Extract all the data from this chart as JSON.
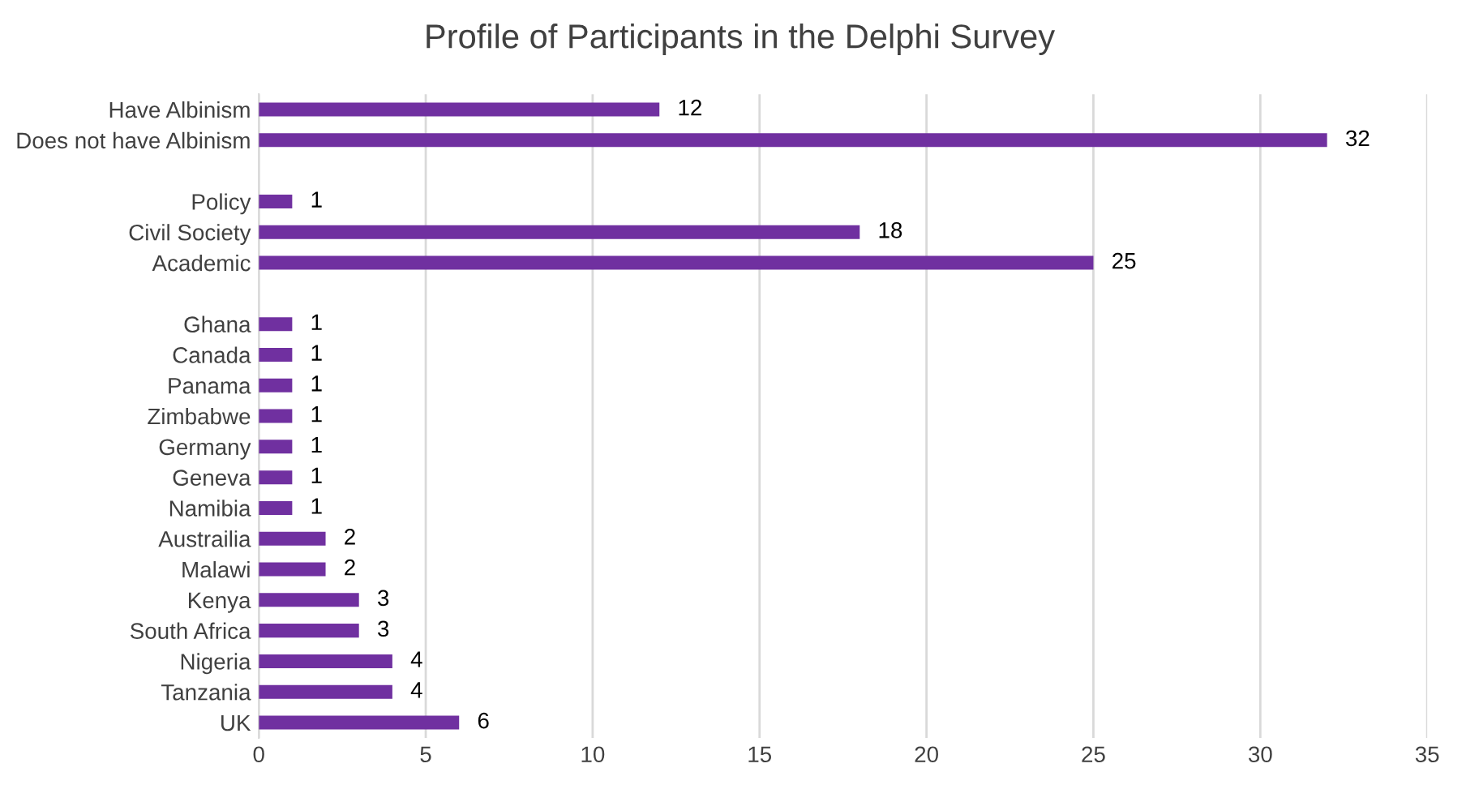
{
  "chart_data": {
    "type": "bar",
    "title": "Profile of Participants in the Delphi Survey",
    "orientation": "horizontal",
    "categories": [
      "Have Albinism",
      "Does not have Albinism",
      null,
      "Policy",
      "Civil Society",
      "Academic",
      null,
      "Ghana",
      "Canada",
      "Panama",
      "Zimbabwe",
      "Germany",
      "Geneva",
      "Namibia",
      "Austrailia",
      "Malawi",
      "Kenya",
      "South Africa",
      "Nigeria",
      "Tanzania",
      "UK"
    ],
    "values": [
      12,
      32,
      null,
      1,
      18,
      25,
      null,
      1,
      1,
      1,
      1,
      1,
      1,
      1,
      2,
      2,
      3,
      3,
      4,
      4,
      6
    ],
    "color": "#7030a0",
    "xlim": [
      0,
      35
    ],
    "xticks": [
      0,
      5,
      10,
      15,
      20,
      25,
      30,
      35
    ],
    "grid": "x",
    "data_labels": true
  }
}
